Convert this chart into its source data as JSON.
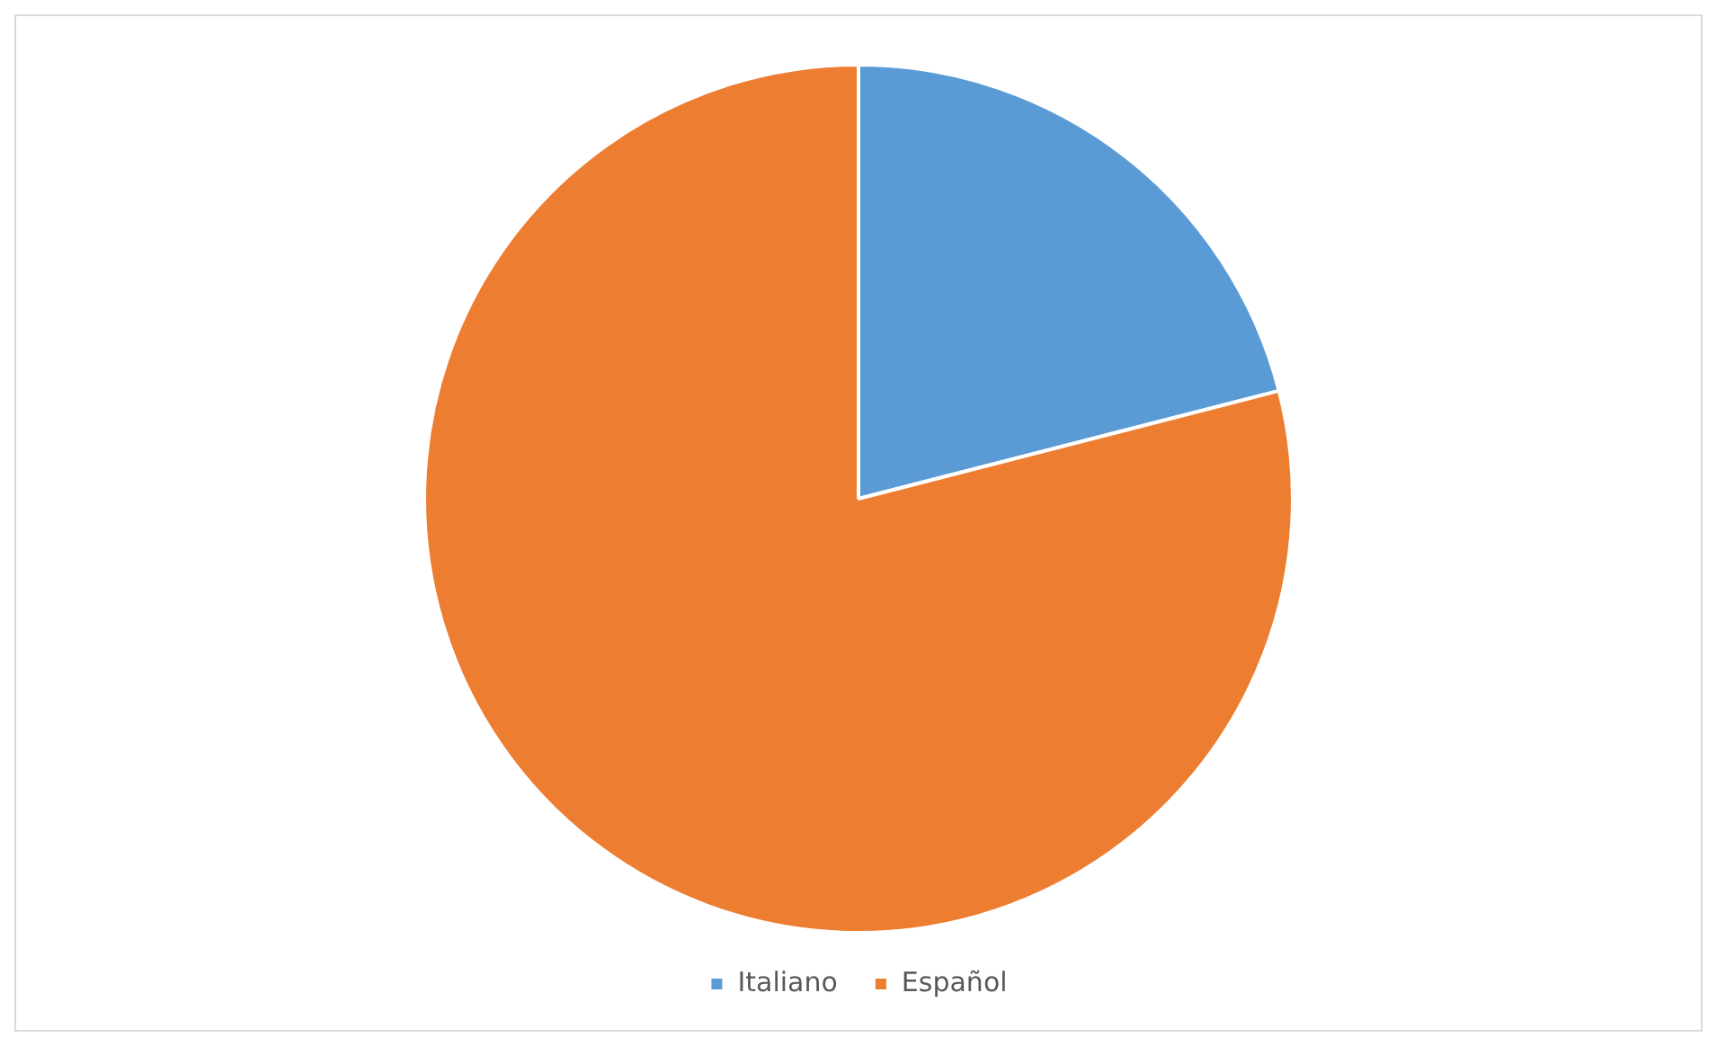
{
  "chart_data": {
    "type": "pie",
    "categories": [
      "Italiano",
      "Español"
    ],
    "values": [
      21,
      79
    ],
    "colors": [
      "#5b9bd5",
      "#ed7d31"
    ],
    "legend": "bottom"
  }
}
